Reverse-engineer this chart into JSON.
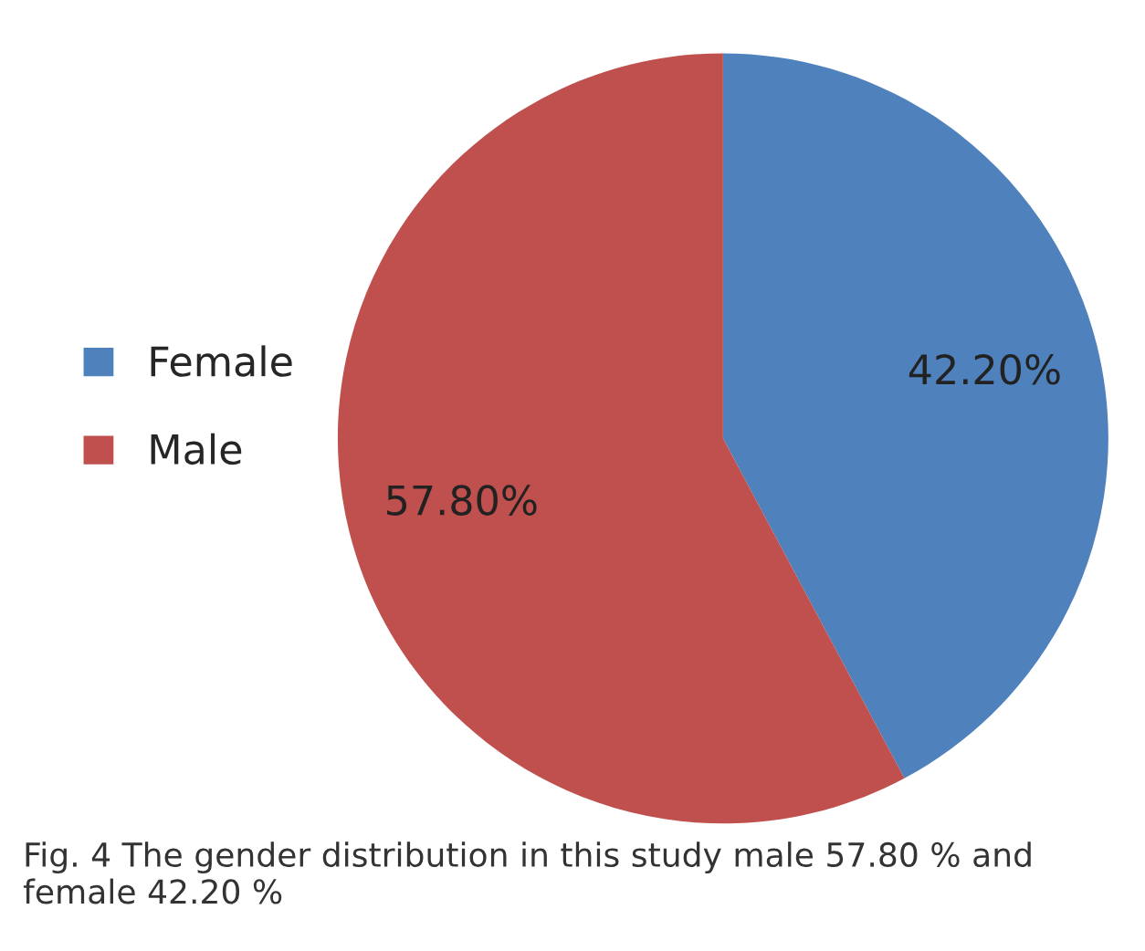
{
  "chart_data": {
    "type": "pie",
    "categories": [
      "Female",
      "Male"
    ],
    "values": [
      42.2,
      57.8
    ],
    "colors": [
      "#4f81bd",
      "#c0504d"
    ],
    "value_labels": [
      "42.20%",
      "57.80%"
    ],
    "legend": "left",
    "annotations": [
      "Fig. 4 The gender distribution in this study male 57.80 % and female 42.20 %"
    ]
  }
}
